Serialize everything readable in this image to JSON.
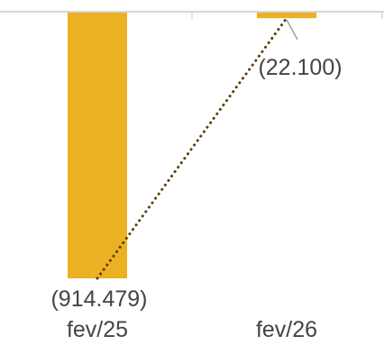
{
  "chart_data": {
    "type": "bar",
    "categories": [
      "fev/25",
      "fev/26"
    ],
    "values": [
      -914479,
      -22100
    ],
    "data_labels": [
      "(914.479)",
      "(22.100)"
    ],
    "title": "",
    "xlabel": "",
    "ylabel": "",
    "ylim": [
      -914479,
      0
    ],
    "grid": false,
    "legend": "none",
    "trendline": {
      "style": "dotted",
      "color": "#5c3d0a"
    },
    "colors": {
      "bar": "#EBB122",
      "axis": "#d6d6d6",
      "leader_line": "#a0a0a0",
      "text": "#444444"
    }
  }
}
